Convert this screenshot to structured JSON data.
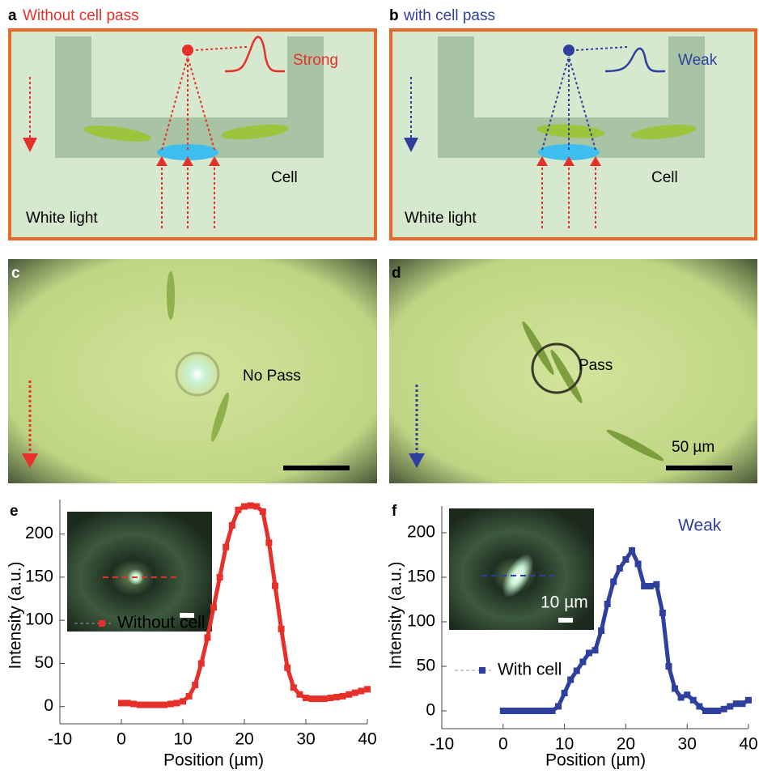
{
  "panels": {
    "a": {
      "label": "a",
      "title": "Without cell pass",
      "signal": "Strong",
      "cell": "Cell",
      "light": "White light"
    },
    "b": {
      "label": "b",
      "title": "with cell pass",
      "signal": "Weak",
      "cell": "Cell",
      "light": "White light"
    },
    "c": {
      "label": "c",
      "text": "No Pass"
    },
    "d": {
      "label": "d",
      "text": "Pass",
      "scale": "50 µm"
    }
  },
  "chart_data": [
    {
      "type": "line",
      "label": "e",
      "xlabel": "Position (µm)",
      "ylabel": "Intensity (a.u.)",
      "x": [
        0,
        1,
        2,
        3,
        4,
        5,
        6,
        7,
        8,
        9,
        10,
        11,
        12,
        13,
        14,
        15,
        16,
        17,
        18,
        19,
        20,
        21,
        22,
        23,
        24,
        25,
        26,
        27,
        28,
        29,
        30,
        31,
        32,
        33,
        34,
        35,
        36,
        37,
        38,
        39,
        40
      ],
      "series": [
        {
          "name": "Without cell",
          "color": "#e8302a",
          "values": [
            4,
            4,
            3,
            2,
            2,
            2,
            2,
            2,
            3,
            4,
            6,
            12,
            25,
            50,
            80,
            115,
            150,
            185,
            210,
            228,
            232,
            233,
            232,
            226,
            190,
            140,
            90,
            45,
            22,
            14,
            10,
            9,
            9,
            9,
            10,
            11,
            12,
            14,
            16,
            18,
            20
          ]
        }
      ],
      "xlim": [
        -10,
        40
      ],
      "ylim": [
        -20,
        240
      ],
      "xticks": [
        -10,
        0,
        10,
        20,
        30,
        40
      ],
      "yticks": [
        0,
        50,
        100,
        150,
        200
      ]
    },
    {
      "type": "line",
      "label": "f",
      "xlabel": "Position (µm)",
      "ylabel": "Intensity (a.u.)",
      "annotation": "Weak",
      "inset_scale": "10 µm",
      "x": [
        0,
        1,
        2,
        3,
        4,
        5,
        6,
        7,
        8,
        9,
        10,
        11,
        12,
        13,
        14,
        15,
        16,
        17,
        18,
        19,
        20,
        21,
        22,
        23,
        24,
        25,
        26,
        27,
        28,
        29,
        30,
        31,
        32,
        33,
        34,
        35,
        36,
        37,
        38,
        39,
        40
      ],
      "series": [
        {
          "name": "With cell",
          "color": "#2e3f9e",
          "values": [
            0,
            0,
            0,
            0,
            0,
            0,
            0,
            0,
            0,
            5,
            20,
            35,
            45,
            55,
            65,
            68,
            90,
            120,
            145,
            160,
            170,
            180,
            165,
            140,
            140,
            142,
            110,
            50,
            25,
            15,
            18,
            12,
            5,
            0,
            0,
            0,
            2,
            5,
            8,
            8,
            12
          ]
        }
      ],
      "xlim": [
        -10,
        40
      ],
      "ylim": [
        -20,
        230
      ],
      "xticks": [
        -10,
        0,
        10,
        20,
        30,
        40
      ],
      "yticks": [
        0,
        50,
        100,
        150,
        200
      ]
    }
  ]
}
